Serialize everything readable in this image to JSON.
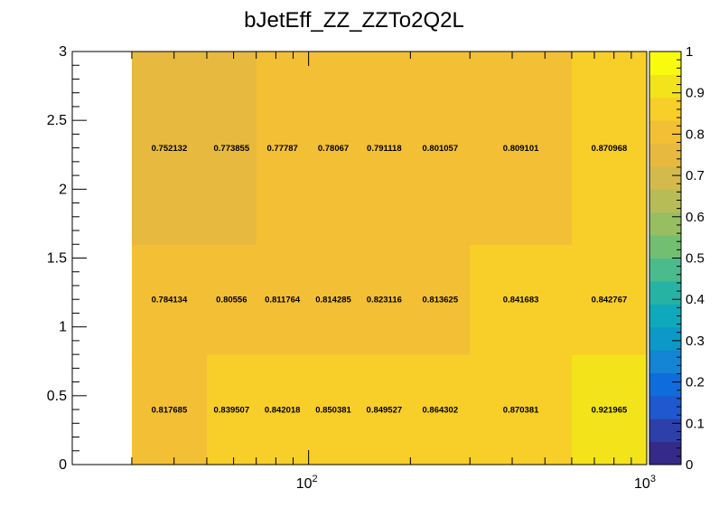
{
  "chart_data": {
    "type": "heatmap",
    "title": "bJetEff_ZZ_ZZTo2Q2L",
    "xlabel": "",
    "ylabel": "",
    "x_scale": "log",
    "xlim": [
      20,
      1000
    ],
    "ylim": [
      0,
      3
    ],
    "x_bin_edges": [
      30,
      50,
      70,
      100,
      140,
      200,
      300,
      600,
      1000
    ],
    "y_bin_edges": [
      0,
      0.8,
      1.6,
      3.0
    ],
    "x_tick_labels": [
      {
        "base": "10",
        "exp": "2"
      },
      {
        "base": "10",
        "exp": "3"
      }
    ],
    "y_tick_labels": [
      "0",
      "0.5",
      "1",
      "1.5",
      "2",
      "2.5",
      "3"
    ],
    "values": [
      [
        0.817685,
        0.839507,
        0.842018,
        0.850381,
        0.849527,
        0.864302,
        0.870381,
        0.921965
      ],
      [
        0.784134,
        0.80556,
        0.811764,
        0.814285,
        0.823116,
        0.813625,
        0.841683,
        0.842767
      ],
      [
        0.752132,
        0.773855,
        0.77787,
        0.78067,
        0.791118,
        0.801057,
        0.809101,
        0.870968
      ]
    ],
    "value_labels": [
      [
        "0.817685",
        "0.839507",
        "0.842018",
        "0.850381",
        "0.849527",
        "0.864302",
        "0.870381",
        "0.921965"
      ],
      [
        "0.784134",
        "0.80556",
        "0.811764",
        "0.814285",
        "0.823116",
        "0.813625",
        "0.841683",
        "0.842767"
      ],
      [
        "0.752132",
        "0.773855",
        "0.77787",
        "0.78067",
        "0.791118",
        "0.801057",
        "0.809101",
        "0.870968"
      ]
    ],
    "colorbar": {
      "range": [
        0,
        1
      ],
      "tick_labels": [
        "0",
        "0.1",
        "0.2",
        "0.3",
        "0.4",
        "0.5",
        "0.6",
        "0.7",
        "0.8",
        "0.9",
        "1"
      ],
      "palette": [
        "#352a87",
        "#2d3fa8",
        "#1f58cf",
        "#0f6ddb",
        "#1484d4",
        "#0c99c8",
        "#0fa9bb",
        "#27b3a4",
        "#4abb8c",
        "#73bf71",
        "#97bf61",
        "#b8bc56",
        "#d4ba4b",
        "#e7b93f",
        "#f3bf35",
        "#f8ce28",
        "#f3e31a",
        "#f9fb0e"
      ]
    },
    "grid": false,
    "legend": "colorbar-right"
  }
}
